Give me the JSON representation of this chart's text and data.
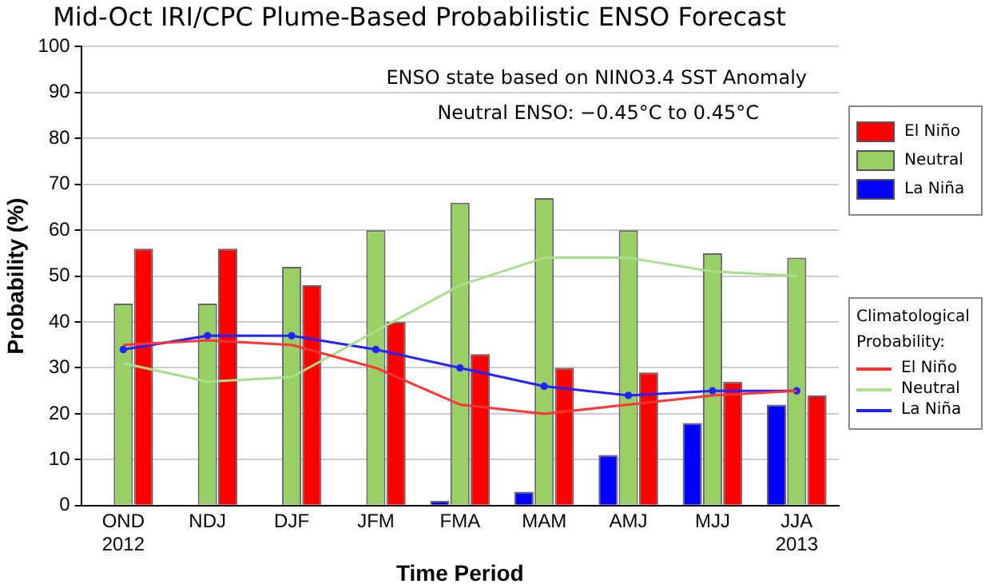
{
  "chart_data": {
    "type": "bar",
    "title": "Mid-Oct IRI/CPC Plume-Based Probabilistic ENSO Forecast",
    "xlabel": "Time Period",
    "ylabel": "Probability (%)",
    "categories": [
      "OND\n2012",
      "NDJ",
      "DJF",
      "JFM",
      "FMA",
      "MAM",
      "AMJ",
      "MJJ",
      "JJA\n2013"
    ],
    "series": [
      {
        "name": "La Niña",
        "color": "#0000ff",
        "values": [
          0,
          0,
          0,
          0,
          1,
          3,
          11,
          18,
          22
        ]
      },
      {
        "name": "Neutral",
        "color": "#99d066",
        "values": [
          44,
          44,
          52,
          60,
          66,
          67,
          60,
          55,
          54
        ]
      },
      {
        "name": "El Niño",
        "color": "#ff0000",
        "values": [
          56,
          56,
          48,
          40,
          33,
          30,
          29,
          27,
          24
        ]
      },
      {
        "name": "El Niño",
        "type": "line",
        "color": "#ff3333",
        "marker": "none",
        "values": [
          35,
          36,
          35,
          30,
          22,
          20,
          22,
          24,
          25
        ]
      },
      {
        "name": "Neutral",
        "type": "line",
        "color": "#a8e08a",
        "marker": "none",
        "values": [
          31,
          27,
          28,
          38,
          48,
          54,
          54,
          51,
          50
        ]
      },
      {
        "name": "La Niña",
        "type": "line",
        "color": "#2222ff",
        "marker": "circle",
        "values": [
          34,
          37,
          37,
          34,
          30,
          26,
          24,
          25,
          25
        ]
      }
    ],
    "legend_title": "Climatological Probability:",
    "annotations": [
      "ENSO state based on NINO3.4 SST Anomaly",
      "Neutral ENSO: −0.45°C to 0.45°C"
    ],
    "ylim": [
      0,
      100
    ],
    "yticks": [
      0,
      10,
      20,
      30,
      40,
      50,
      60,
      70,
      80,
      90,
      100
    ],
    "grid": "y",
    "legend": "right"
  }
}
